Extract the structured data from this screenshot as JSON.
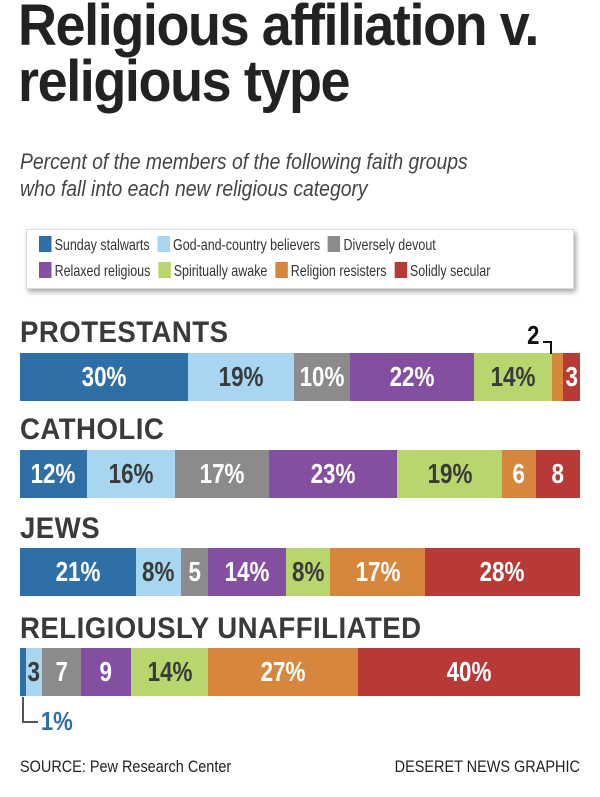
{
  "chart_data": {
    "type": "stacked-bar-horizontal",
    "title": "Religious affiliation v. religious type",
    "subtitle_lines": [
      "Percent of the members of the following faith groups",
      "who fall into each new religious category"
    ],
    "legend": [
      {
        "name": "Sunday stalwarts",
        "color": "#2e6fa7"
      },
      {
        "name": "God-and-country believers",
        "color": "#a8d6f0"
      },
      {
        "name": "Diversely devout",
        "color": "#8c8a8b"
      },
      {
        "name": "Relaxed religious",
        "color": "#844fa0"
      },
      {
        "name": "Spiritually awake",
        "color": "#b9d56e"
      },
      {
        "name": "Religion resisters",
        "color": "#d6873d"
      },
      {
        "name": "Solidly secular",
        "color": "#b83a36"
      }
    ],
    "groups": [
      {
        "name": "PROTESTANTS",
        "values": [
          30,
          19,
          10,
          22,
          14,
          2,
          3
        ],
        "labels": [
          "30%",
          "19%",
          "10%",
          "22%",
          "14%",
          "",
          "3"
        ],
        "callout": "2"
      },
      {
        "name": "CATHOLIC",
        "values": [
          12,
          16,
          17,
          23,
          19,
          6,
          8
        ],
        "labels": [
          "12%",
          "16%",
          "17%",
          "23%",
          "19%",
          "6",
          "8"
        ]
      },
      {
        "name": "JEWS",
        "values": [
          21,
          8,
          5,
          14,
          8,
          17,
          28
        ],
        "labels": [
          "21%",
          "8%",
          "5",
          "14%",
          "8%",
          "17%",
          "28%"
        ]
      },
      {
        "name": "RELIGIOUSLY UNAFFILIATED",
        "values": [
          1,
          3,
          7,
          9,
          14,
          27,
          40
        ],
        "labels": [
          "",
          "3",
          "7",
          "9",
          "14%",
          "27%",
          "40%"
        ],
        "callout": "1%"
      }
    ]
  },
  "footer": {
    "source": "SOURCE: Pew Research Center",
    "credit": "DESERET NEWS GRAPHIC"
  }
}
